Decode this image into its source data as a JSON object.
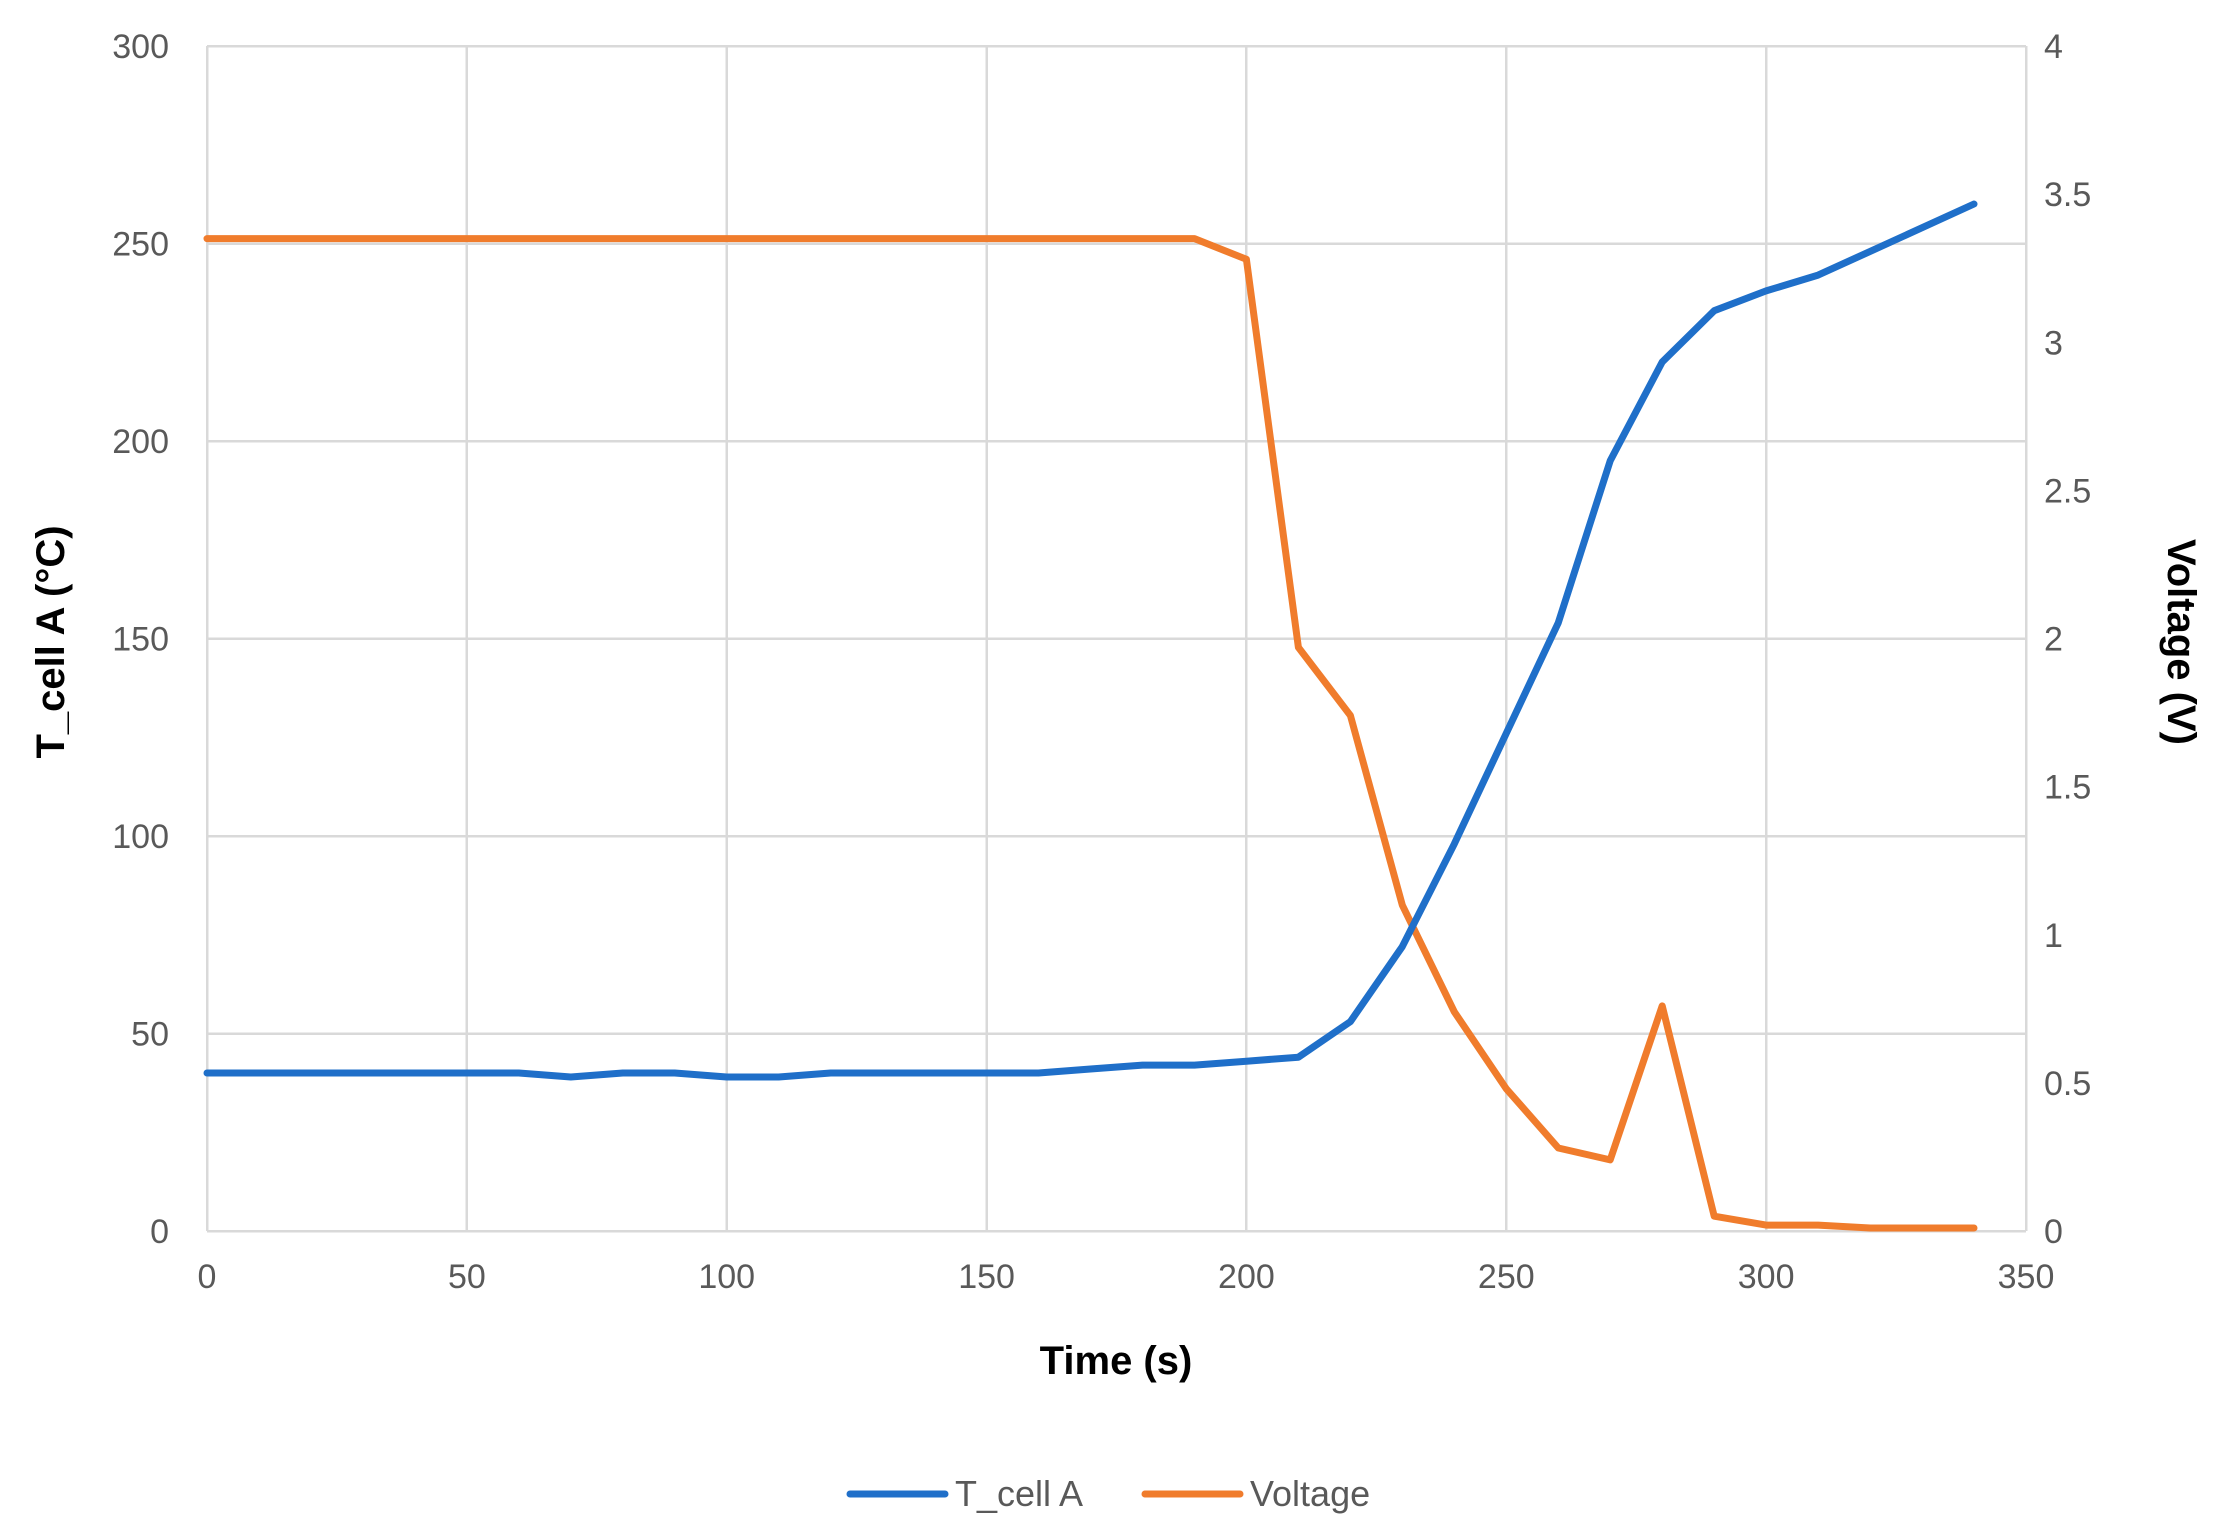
{
  "chart_data": {
    "type": "line",
    "title": "",
    "xlabel": "Time (s)",
    "ylabel": "T_cell A (°C)",
    "y2label": "Voltage (V)",
    "xlim": [
      0,
      350
    ],
    "ylim": [
      0,
      300
    ],
    "y2lim": [
      0,
      4
    ],
    "x_ticks": [
      0,
      50,
      100,
      150,
      200,
      250,
      300,
      350
    ],
    "y_ticks": [
      0,
      50,
      100,
      150,
      200,
      250,
      300
    ],
    "y2_ticks": [
      0,
      0.5,
      1,
      1.5,
      2,
      2.5,
      3,
      3.5,
      4
    ],
    "grid": true,
    "legend_position": "bottom-center",
    "series": [
      {
        "name": "T_cell A",
        "axis": "left",
        "color": "#1f6fc9",
        "x": [
          0,
          10,
          20,
          30,
          40,
          50,
          60,
          70,
          80,
          90,
          100,
          110,
          120,
          130,
          140,
          150,
          160,
          170,
          180,
          190,
          200,
          210,
          220,
          230,
          240,
          250,
          260,
          270,
          280,
          290,
          300,
          310,
          320,
          330,
          340
        ],
        "values": [
          40,
          40,
          40,
          40,
          40,
          40,
          40,
          39,
          40,
          40,
          39,
          39,
          40,
          40,
          40,
          40,
          40,
          41,
          42,
          42,
          43,
          44,
          53,
          72,
          98,
          126,
          154,
          195,
          220,
          233,
          238,
          242,
          248,
          254,
          260
        ]
      },
      {
        "name": "Voltage",
        "axis": "right",
        "color": "#f07c2c",
        "x": [
          0,
          10,
          20,
          30,
          40,
          50,
          60,
          70,
          80,
          90,
          100,
          110,
          120,
          130,
          140,
          150,
          160,
          170,
          180,
          190,
          200,
          210,
          220,
          230,
          240,
          250,
          260,
          270,
          280,
          290,
          300,
          310,
          320,
          330,
          340
        ],
        "values": [
          3.35,
          3.35,
          3.35,
          3.35,
          3.35,
          3.35,
          3.35,
          3.35,
          3.35,
          3.35,
          3.35,
          3.35,
          3.35,
          3.35,
          3.35,
          3.35,
          3.35,
          3.35,
          3.35,
          3.35,
          3.28,
          1.97,
          1.74,
          1.1,
          0.74,
          0.48,
          0.28,
          0.24,
          0.76,
          0.05,
          0.02,
          0.02,
          0.01,
          0.01,
          0.01
        ]
      }
    ]
  }
}
